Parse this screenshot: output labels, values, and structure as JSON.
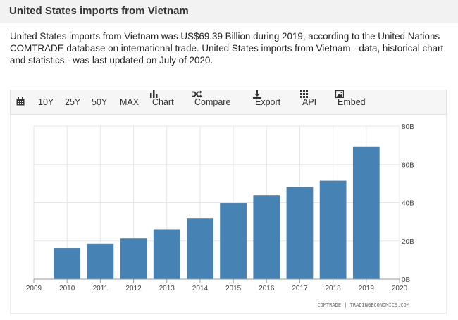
{
  "header": {
    "title": "United States imports from Vietnam"
  },
  "description": "United States imports from Vietnam was US$69.39 Billion during 2019, according to the United Nations COMTRADE database on international trade. United States imports from Vietnam - data, historical chart and statistics - was last updated on July of 2020.",
  "toolbar": {
    "range_10y": "10Y",
    "range_25y": "25Y",
    "range_50y": "50Y",
    "range_max": "MAX",
    "chart_label": "Chart",
    "compare_label": "Compare",
    "export_label": "Export",
    "api_label": "API",
    "embed_label": "Embed"
  },
  "colors": {
    "bar": "#4682b4",
    "grid": "#e6e6e6"
  },
  "chart_data": {
    "type": "bar",
    "categories": [
      "2010",
      "2011",
      "2012",
      "2013",
      "2014",
      "2015",
      "2016",
      "2017",
      "2018",
      "2019"
    ],
    "values": [
      16.2,
      18.5,
      21.3,
      26.0,
      32.0,
      39.8,
      43.8,
      48.2,
      51.4,
      69.39
    ],
    "x_ticks": [
      "2009",
      "2010",
      "2011",
      "2012",
      "2013",
      "2014",
      "2015",
      "2016",
      "2017",
      "2018",
      "2019",
      "2020"
    ],
    "y_ticks": [
      "0B",
      "20B",
      "40B",
      "60B",
      "80B"
    ],
    "ylim": [
      0,
      80
    ],
    "source": "COMTRADE | TRADINGECONOMICS.COM"
  }
}
